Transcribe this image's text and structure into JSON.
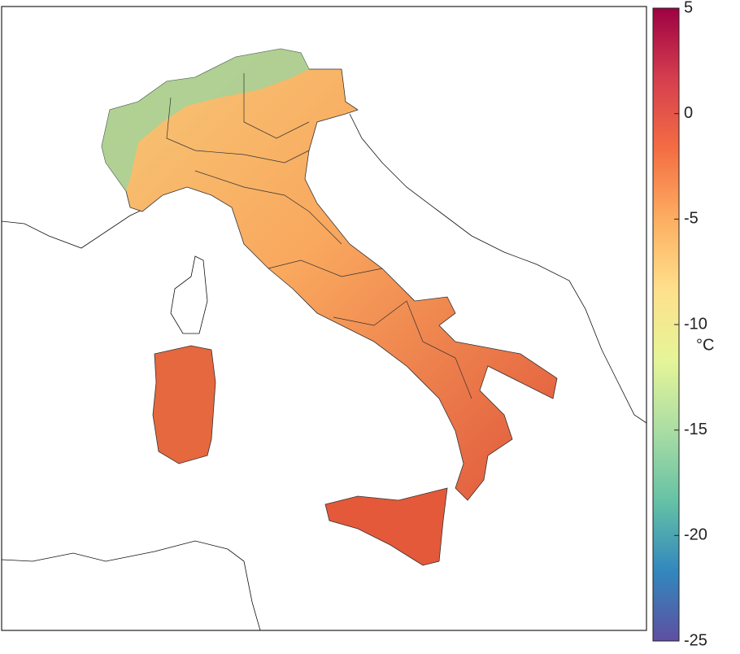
{
  "colorbar": {
    "min": -25,
    "max": 5,
    "ticks": [
      5,
      0,
      -5,
      -10,
      -15,
      -20,
      -25
    ],
    "unit": "°C",
    "colors": [
      "#5e4fa2",
      "#3288bd",
      "#66c2a5",
      "#abdda4",
      "#e6f598",
      "#fee08b",
      "#fdae61",
      "#f46d43",
      "#d53e4f",
      "#9e0142"
    ]
  }
}
